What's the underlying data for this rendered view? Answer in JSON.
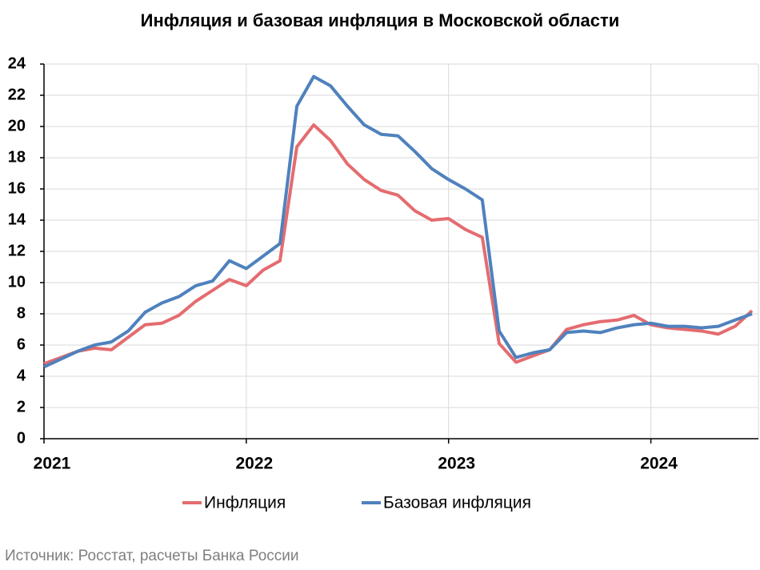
{
  "chart_data": {
    "type": "line",
    "title": "Инфляция и базовая инфляция в Московской области",
    "source": "Источник: Росстат, расчеты Банка России",
    "categories": [
      "2021",
      null,
      null,
      null,
      null,
      null,
      null,
      null,
      null,
      null,
      null,
      null,
      "2022",
      null,
      null,
      null,
      null,
      null,
      null,
      null,
      null,
      null,
      null,
      null,
      "2023",
      null,
      null,
      null,
      null,
      null,
      null,
      null,
      null,
      null,
      null,
      null,
      "2024",
      null,
      null,
      null,
      null,
      null,
      null
    ],
    "series": [
      {
        "name": "Инфляция",
        "color": "#e46c6f",
        "values": [
          4.8,
          5.2,
          5.6,
          5.8,
          5.7,
          6.5,
          7.3,
          7.4,
          7.9,
          8.8,
          9.5,
          10.2,
          9.8,
          10.8,
          11.4,
          18.7,
          20.1,
          19.1,
          17.6,
          16.6,
          15.9,
          15.6,
          14.6,
          14.0,
          14.1,
          13.4,
          12.9,
          6.1,
          4.9,
          5.3,
          5.7,
          7.0,
          7.3,
          7.5,
          7.6,
          7.9,
          7.3,
          7.1,
          7.0,
          6.9,
          6.7,
          7.2,
          8.2
        ]
      },
      {
        "name": "Базовая инфляция",
        "color": "#4f81bd",
        "values": [
          4.6,
          5.1,
          5.6,
          6.0,
          6.2,
          6.9,
          8.1,
          8.7,
          9.1,
          9.8,
          10.1,
          11.4,
          10.9,
          11.7,
          12.5,
          21.3,
          23.2,
          22.6,
          21.3,
          20.1,
          19.5,
          19.4,
          18.4,
          17.3,
          16.6,
          16.0,
          15.3,
          6.9,
          5.2,
          5.5,
          5.7,
          6.8,
          6.9,
          6.8,
          7.1,
          7.3,
          7.4,
          7.2,
          7.2,
          7.1,
          7.2,
          7.6,
          8.0
        ]
      }
    ],
    "ylim": [
      0,
      24
    ],
    "yticks": [
      0,
      2,
      4,
      6,
      8,
      10,
      12,
      14,
      16,
      18,
      20,
      22,
      24
    ],
    "grid": true
  }
}
